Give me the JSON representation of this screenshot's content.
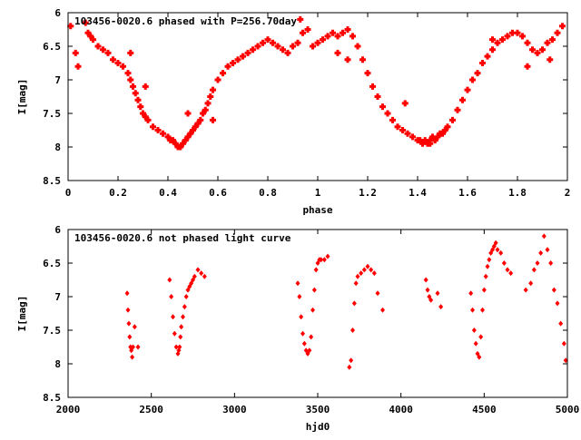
{
  "chart_data": [
    {
      "type": "scatter",
      "title": "103456-0020.6 phased with P=256.70day",
      "xlabel": "phase",
      "ylabel": "I[mag]",
      "xlim": [
        0,
        2
      ],
      "ylim": [
        6,
        8.5
      ],
      "y_inverted": true,
      "xticks": [
        0,
        0.2,
        0.4,
        0.6,
        0.8,
        1,
        1.2,
        1.4,
        1.6,
        1.8,
        2
      ],
      "xtick_labels": [
        "0",
        "0.2",
        "0.4",
        "0.6",
        "0.8",
        "1",
        "1.2",
        "1.4",
        "1.6",
        "1.8",
        "2"
      ],
      "yticks": [
        6,
        6.5,
        7,
        7.5,
        8,
        8.5
      ],
      "ytick_labels": [
        "6",
        "6.5",
        "7",
        "7.5",
        "8",
        "8.5"
      ],
      "marker_color": "#ff0000",
      "marker": "plus",
      "x": [
        0.01,
        0.03,
        0.04,
        0.07,
        0.08,
        0.09,
        0.1,
        0.12,
        0.14,
        0.16,
        0.18,
        0.2,
        0.22,
        0.24,
        0.25,
        0.26,
        0.27,
        0.28,
        0.29,
        0.3,
        0.31,
        0.32,
        0.34,
        0.36,
        0.38,
        0.4,
        0.41,
        0.42,
        0.43,
        0.44,
        0.45,
        0.46,
        0.47,
        0.48,
        0.49,
        0.5,
        0.51,
        0.52,
        0.53,
        0.54,
        0.55,
        0.56,
        0.57,
        0.58,
        0.6,
        0.62,
        0.64,
        0.66,
        0.68,
        0.7,
        0.72,
        0.74,
        0.76,
        0.78,
        0.8,
        0.82,
        0.84,
        0.86,
        0.88,
        0.9,
        0.92,
        0.94,
        0.96,
        0.98,
        1.0,
        1.02,
        1.04,
        1.06,
        1.08,
        1.1,
        1.12,
        1.14,
        1.16,
        1.18,
        1.2,
        1.22,
        1.24,
        1.26,
        1.28,
        1.3,
        1.32,
        1.34,
        1.36,
        1.38,
        1.4,
        1.41,
        1.42,
        1.43,
        1.44,
        1.45,
        1.46,
        1.47,
        1.48,
        1.49,
        1.5,
        1.51,
        1.52,
        1.54,
        1.56,
        1.58,
        1.6,
        1.62,
        1.64,
        1.66,
        1.68,
        1.7,
        1.72,
        1.74,
        1.76,
        1.78,
        1.8,
        1.82,
        1.84,
        1.86,
        1.88,
        1.9,
        1.92,
        1.94,
        1.96,
        1.98,
        0.93,
        0.25,
        0.31,
        0.48,
        0.58,
        1.08,
        1.12,
        1.35,
        1.45,
        1.7,
        1.84,
        1.93
      ],
      "y": [
        6.2,
        6.6,
        6.8,
        6.15,
        6.3,
        6.35,
        6.4,
        6.5,
        6.55,
        6.6,
        6.7,
        6.75,
        6.8,
        6.9,
        7.0,
        7.1,
        7.2,
        7.3,
        7.4,
        7.5,
        7.55,
        7.6,
        7.7,
        7.75,
        7.8,
        7.85,
        7.9,
        7.9,
        7.95,
        8.0,
        8.0,
        7.95,
        7.9,
        7.85,
        7.8,
        7.75,
        7.7,
        7.65,
        7.6,
        7.5,
        7.45,
        7.35,
        7.25,
        7.15,
        7.0,
        6.9,
        6.8,
        6.75,
        6.7,
        6.65,
        6.6,
        6.55,
        6.5,
        6.45,
        6.4,
        6.45,
        6.5,
        6.55,
        6.6,
        6.5,
        6.45,
        6.3,
        6.25,
        6.5,
        6.45,
        6.4,
        6.35,
        6.3,
        6.35,
        6.3,
        6.25,
        6.35,
        6.5,
        6.7,
        6.9,
        7.1,
        7.25,
        7.4,
        7.5,
        7.6,
        7.7,
        7.75,
        7.8,
        7.85,
        7.9,
        7.9,
        7.95,
        7.9,
        7.95,
        7.9,
        7.85,
        7.9,
        7.85,
        7.8,
        7.8,
        7.75,
        7.7,
        7.6,
        7.45,
        7.3,
        7.15,
        7.0,
        6.9,
        6.75,
        6.65,
        6.55,
        6.45,
        6.4,
        6.35,
        6.3,
        6.3,
        6.35,
        6.45,
        6.55,
        6.6,
        6.55,
        6.45,
        6.4,
        6.3,
        6.2,
        6.1,
        6.6,
        7.1,
        7.5,
        7.6,
        6.6,
        6.7,
        7.35,
        7.95,
        6.4,
        6.8,
        6.7
      ]
    },
    {
      "type": "scatter",
      "title": "103456-0020.6 not phased light curve",
      "xlabel": "hjd0",
      "ylabel": "I[mag]",
      "xlim": [
        2000,
        5000
      ],
      "ylim": [
        6,
        8.5
      ],
      "y_inverted": true,
      "xticks": [
        2000,
        2500,
        3000,
        3500,
        4000,
        4500,
        5000
      ],
      "xtick_labels": [
        "2000",
        "2500",
        "3000",
        "3500",
        "4000",
        "4500",
        "5000"
      ],
      "yticks": [
        6,
        6.5,
        7,
        7.5,
        8,
        8.5
      ],
      "ytick_labels": [
        "6",
        "6.5",
        "7",
        "7.5",
        "8",
        "8.5"
      ],
      "marker_color": "#ff0000",
      "marker": "diamond",
      "x": [
        2355,
        2360,
        2365,
        2370,
        2375,
        2380,
        2385,
        2390,
        2400,
        2420,
        2610,
        2620,
        2630,
        2640,
        2650,
        2660,
        2665,
        2670,
        2675,
        2680,
        2690,
        2700,
        2710,
        2720,
        2730,
        2740,
        2750,
        2760,
        2780,
        2800,
        2820,
        3380,
        3390,
        3400,
        3410,
        3420,
        3430,
        3440,
        3450,
        3460,
        3470,
        3480,
        3490,
        3500,
        3510,
        3520,
        3540,
        3560,
        3690,
        3700,
        3710,
        3720,
        3730,
        3740,
        3760,
        3780,
        3800,
        3820,
        3840,
        3860,
        3890,
        4150,
        4160,
        4170,
        4180,
        4220,
        4240,
        4420,
        4430,
        4440,
        4450,
        4460,
        4470,
        4480,
        4490,
        4500,
        4510,
        4520,
        4530,
        4540,
        4550,
        4560,
        4570,
        4580,
        4600,
        4620,
        4640,
        4660,
        4750,
        4780,
        4800,
        4820,
        4840,
        4860,
        4880,
        4900,
        4920,
        4940,
        4960,
        4980,
        4990
      ],
      "y": [
        6.95,
        7.2,
        7.4,
        7.6,
        7.75,
        7.8,
        7.9,
        7.75,
        7.45,
        7.75,
        6.75,
        7.0,
        7.3,
        7.55,
        7.75,
        7.85,
        7.8,
        7.75,
        7.6,
        7.45,
        7.3,
        7.15,
        7.0,
        6.9,
        6.85,
        6.8,
        6.75,
        6.7,
        6.6,
        6.65,
        6.7,
        6.8,
        7.0,
        7.3,
        7.55,
        7.7,
        7.8,
        7.85,
        7.8,
        7.6,
        7.2,
        6.9,
        6.6,
        6.5,
        6.45,
        6.45,
        6.45,
        6.4,
        8.05,
        7.95,
        7.5,
        7.1,
        6.8,
        6.7,
        6.65,
        6.6,
        6.55,
        6.6,
        6.65,
        6.95,
        7.2,
        6.75,
        6.9,
        7.0,
        7.05,
        6.95,
        7.15,
        6.95,
        7.2,
        7.5,
        7.7,
        7.85,
        7.9,
        7.6,
        7.2,
        6.9,
        6.7,
        6.55,
        6.45,
        6.35,
        6.3,
        6.25,
        6.2,
        6.3,
        6.35,
        6.5,
        6.6,
        6.65,
        6.9,
        6.8,
        6.6,
        6.5,
        6.35,
        6.1,
        6.3,
        6.5,
        6.9,
        7.1,
        7.4,
        7.7,
        7.95
      ]
    }
  ]
}
